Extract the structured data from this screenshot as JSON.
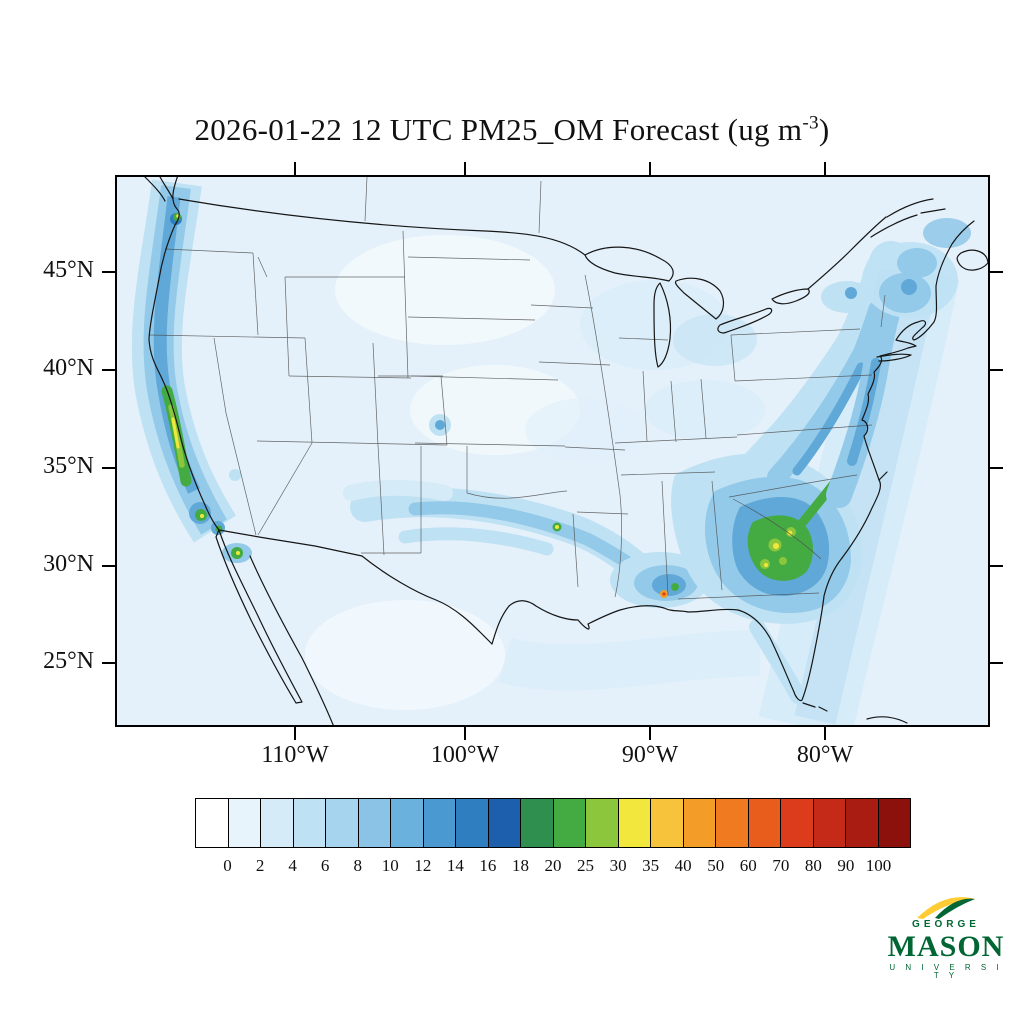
{
  "title": {
    "prefix": "2026-01-22 12 UTC PM25_OM Forecast (ug m",
    "superscript": "-3",
    "suffix": ")"
  },
  "map": {
    "lat_ticks": [
      "45°N",
      "40°N",
      "35°N",
      "30°N",
      "25°N"
    ],
    "lon_ticks": [
      "110°W",
      "100°W",
      "90°W",
      "80°W"
    ]
  },
  "colorbar": {
    "labels": [
      "0",
      "2",
      "4",
      "6",
      "8",
      "10",
      "12",
      "14",
      "16",
      "18",
      "20",
      "25",
      "30",
      "35",
      "40",
      "50",
      "60",
      "70",
      "80",
      "90",
      "100"
    ],
    "colors": [
      "#FFFFFF",
      "#E8F4FB",
      "#D5EBF8",
      "#BFE1F4",
      "#A6D4EE",
      "#8AC3E6",
      "#6AB1DD",
      "#4A99D1",
      "#2F7EC0",
      "#1E5FAD",
      "#2F8F4F",
      "#44AB43",
      "#8CC63C",
      "#F2E83D",
      "#F6C33A",
      "#F39C27",
      "#EF7A1F",
      "#E85C1C",
      "#DC3B1C",
      "#C52A18",
      "#A81C12",
      "#8C100C"
    ]
  },
  "chart_data": {
    "type": "heatmap",
    "title": "2026-01-22 12 UTC PM25_OM Forecast (ug m-3)",
    "variable": "PM25_OM",
    "units": "ug m-3",
    "valid_time": "2026-01-22 12 UTC",
    "lat_tick_values_deg_N": [
      45,
      40,
      35,
      30,
      25
    ],
    "lon_tick_values_deg_W": [
      110,
      100,
      90,
      80
    ],
    "colorbar_levels": [
      0,
      2,
      4,
      6,
      8,
      10,
      12,
      14,
      16,
      18,
      20,
      25,
      30,
      35,
      40,
      50,
      60,
      70,
      80,
      90,
      100
    ],
    "colorbar_colors": [
      "#FFFFFF",
      "#E8F4FB",
      "#D5EBF8",
      "#BFE1F4",
      "#A6D4EE",
      "#8AC3E6",
      "#6AB1DD",
      "#4A99D1",
      "#2F7EC0",
      "#1E5FAD",
      "#2F8F4F",
      "#44AB43",
      "#8CC63C",
      "#F2E83D",
      "#F6C33A",
      "#F39C27",
      "#EF7A1F",
      "#E85C1C",
      "#DC3B1C",
      "#C52A18",
      "#A81C12",
      "#8C100C"
    ],
    "legend_position": "bottom",
    "grid": "state and national borders drawn, Lambert-type conformal map of contiguous United States",
    "regions": [
      {
        "area": "Background over most of domain and oceans",
        "approx_value_ug_m3": "0-4"
      },
      {
        "area": "Pacific Northwest coast (Washington / Oregon)",
        "approx_value_ug_m3": "6-25"
      },
      {
        "area": "California Central Valley",
        "approx_value_ug_m3": "10-35"
      },
      {
        "area": "Southern California (Los Angeles / San Diego)",
        "approx_value_ug_m3": "8-25"
      },
      {
        "area": "Central Arizona (Phoenix area)",
        "approx_value_ug_m3": "8-30"
      },
      {
        "area": "Southern Plains streaks (New Mexico to Texas / Oklahoma)",
        "approx_value_ug_m3": "4-12"
      },
      {
        "area": "North Texas spot (Dallas area)",
        "approx_value_ug_m3": "20-30"
      },
      {
        "area": "Central Gulf Coast (Mobile, AL area orange spot)",
        "approx_value_ug_m3": "40-60"
      },
      {
        "area": "Southeast core (Georgia / South Carolina, green-yellow)",
        "approx_value_ug_m3": "12-35"
      },
      {
        "area": "Appalachians and Mid-Atlantic / Northeast corridor",
        "approx_value_ug_m3": "4-14"
      },
      {
        "area": "Denver area spot",
        "approx_value_ug_m3": "6-12"
      }
    ]
  },
  "logo": {
    "line1": "GEORGE",
    "line2": "MASON",
    "line3": "U N I V E R S I T Y"
  }
}
